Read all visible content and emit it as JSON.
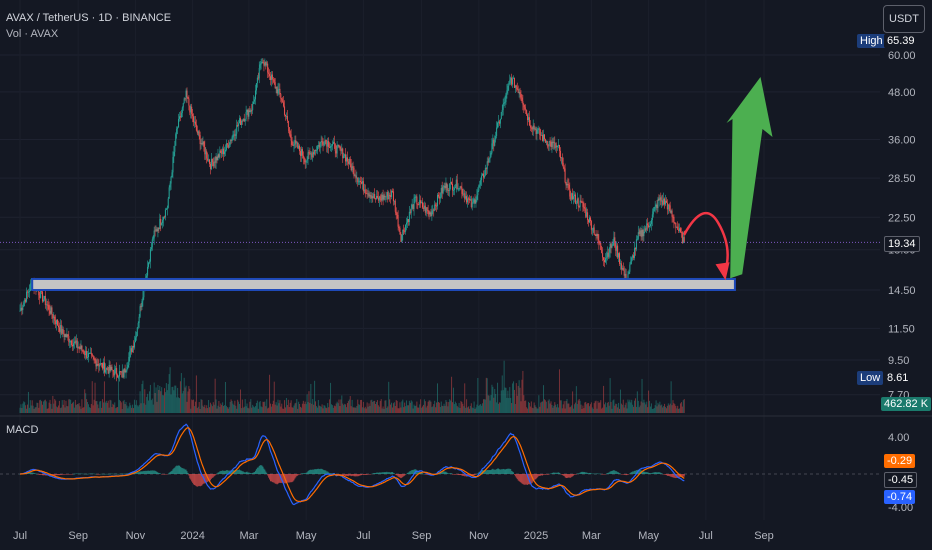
{
  "header": {
    "symbol": "AVAX / TetherUS · 1D · BINANCE",
    "volume_label": "Vol · AVAX"
  },
  "currency_button": "USDT",
  "macd_label": "MACD",
  "price_tags": {
    "high_label": "High",
    "high_value": "65.39",
    "current": "19.34",
    "low_label": "Low",
    "low_value": "8.61",
    "volume": "462.82 K",
    "macd_values": [
      "-0.29",
      "-0.45",
      "-0.74"
    ]
  },
  "colors": {
    "background": "#141823",
    "up": "#26a69a",
    "down": "#ef5350",
    "zone": "#c4c4c4",
    "zone_border": "#1e49b8",
    "arrow_up": "#4caf50",
    "arrow_down": "#f23645",
    "macd_line": "#2962ff",
    "signal_line": "#ff6d00",
    "price_line": "#7e57c2"
  },
  "chart_data": {
    "type": "line",
    "ylabel": "",
    "y_scale": "log",
    "y_ticks": [
      "60.00",
      "48.00",
      "36.00",
      "28.50",
      "22.50",
      "18.50",
      "14.50",
      "11.50",
      "9.50",
      "7.70"
    ],
    "x_ticks": [
      "Jul",
      "Sep",
      "Nov",
      "2024",
      "Mar",
      "May",
      "Jul",
      "Sep",
      "Nov",
      "2025",
      "Mar",
      "May",
      "Jul",
      "Sep"
    ],
    "macd_ticks": [
      "4.00",
      "-4.00"
    ],
    "series": [
      {
        "name": "AVAX",
        "points": [
          [
            "2023-07-01",
            12.8
          ],
          [
            "2023-07-14",
            15.2
          ],
          [
            "2023-07-28",
            13.5
          ],
          [
            "2023-08-15",
            11.2
          ],
          [
            "2023-09-01",
            10.3
          ],
          [
            "2023-09-15",
            9.6
          ],
          [
            "2023-10-01",
            9.0
          ],
          [
            "2023-10-19",
            8.7
          ],
          [
            "2023-11-01",
            10.9
          ],
          [
            "2023-11-10",
            14.8
          ],
          [
            "2023-11-20",
            20.0
          ],
          [
            "2023-12-05",
            24.0
          ],
          [
            "2023-12-15",
            38.0
          ],
          [
            "2023-12-25",
            47.0
          ],
          [
            "2024-01-05",
            38.0
          ],
          [
            "2024-01-20",
            31.0
          ],
          [
            "2024-02-05",
            34.0
          ],
          [
            "2024-02-20",
            40.0
          ],
          [
            "2024-03-05",
            44.0
          ],
          [
            "2024-03-15",
            59.0
          ],
          [
            "2024-03-25",
            52.0
          ],
          [
            "2024-04-05",
            46.0
          ],
          [
            "2024-04-15",
            36.0
          ],
          [
            "2024-05-01",
            32.0
          ],
          [
            "2024-05-20",
            36.0
          ],
          [
            "2024-06-10",
            33.0
          ],
          [
            "2024-07-01",
            27.0
          ],
          [
            "2024-07-15",
            25.0
          ],
          [
            "2024-08-01",
            26.0
          ],
          [
            "2024-08-10",
            20.0
          ],
          [
            "2024-08-25",
            25.0
          ],
          [
            "2024-09-10",
            23.0
          ],
          [
            "2024-09-25",
            27.0
          ],
          [
            "2024-10-10",
            27.5
          ],
          [
            "2024-10-25",
            24.0
          ],
          [
            "2024-11-10",
            31.0
          ],
          [
            "2024-11-25",
            42.0
          ],
          [
            "2024-12-05",
            52.0
          ],
          [
            "2024-12-15",
            48.0
          ],
          [
            "2024-12-25",
            40.0
          ],
          [
            "2025-01-10",
            36.0
          ],
          [
            "2025-01-25",
            34.0
          ],
          [
            "2025-02-05",
            26.0
          ],
          [
            "2025-02-20",
            24.0
          ],
          [
            "2025-03-05",
            20.5
          ],
          [
            "2025-03-15",
            17.5
          ],
          [
            "2025-03-25",
            19.5
          ],
          [
            "2025-04-07",
            15.3
          ],
          [
            "2025-04-20",
            20.0
          ],
          [
            "2025-05-01",
            21.5
          ],
          [
            "2025-05-12",
            25.0
          ],
          [
            "2025-05-20",
            24.5
          ],
          [
            "2025-06-01",
            21.0
          ],
          [
            "2025-06-08",
            19.34
          ]
        ]
      }
    ],
    "annotations": {
      "support_zone": [
        14.5,
        15.5
      ],
      "current_price": 19.34,
      "down_arrow_target": 15.2,
      "up_arrow_target": 60.0
    }
  }
}
